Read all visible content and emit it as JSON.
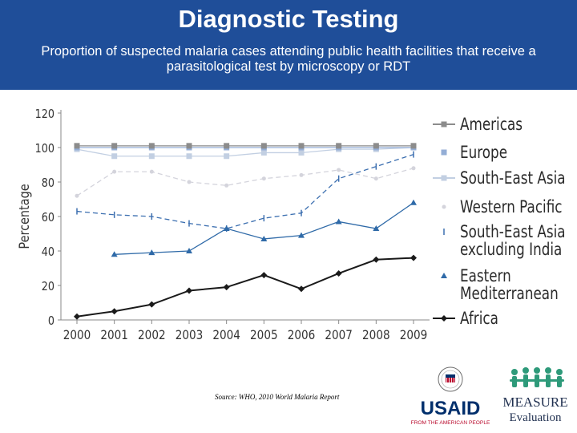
{
  "header": {
    "title": "Diagnostic Testing",
    "subtitle": "Proportion of suspected malaria cases attending public health facilities that receive a parasitological test by microscopy or RDT"
  },
  "chart_data": {
    "type": "line",
    "title": "",
    "xlabel": "",
    "ylabel": "Percentage",
    "categories": [
      "2000",
      "2001",
      "2002",
      "2003",
      "2004",
      "2005",
      "2006",
      "2007",
      "2008",
      "2009"
    ],
    "ylim": [
      0,
      120
    ],
    "yticks": [
      0,
      20,
      40,
      60,
      80,
      100,
      120
    ],
    "legend_position": "right",
    "series": [
      {
        "name": "Americas",
        "style": "solid",
        "marker": "square",
        "color": "#8c8c8c",
        "values": [
          101,
          101,
          101,
          101,
          101,
          101,
          101,
          101,
          101,
          101
        ]
      },
      {
        "name": "Europe",
        "style": "solid",
        "marker": "square",
        "color": "#94aed6",
        "values": [
          100,
          100,
          100,
          100,
          100,
          100,
          100,
          100,
          100,
          100
        ]
      },
      {
        "name": "South-East Asia",
        "style": "solid",
        "marker": "square",
        "color": "#c2cfe2",
        "values": [
          99,
          95,
          95,
          95,
          95,
          97,
          97,
          99,
          99,
          100
        ]
      },
      {
        "name": "Western Pacific",
        "style": "dashed",
        "marker": "circle",
        "color": "#d4d4dc",
        "values": [
          72,
          86,
          86,
          80,
          78,
          82,
          84,
          87,
          82,
          88
        ]
      },
      {
        "name": "South-East Asia excluding India",
        "style": "dashed",
        "marker": "tick",
        "color": "#3c6fb0",
        "values": [
          63,
          61,
          60,
          56,
          53,
          59,
          62,
          82,
          89,
          96
        ]
      },
      {
        "name": "Eastern Mediterranean",
        "style": "solid",
        "marker": "triangle",
        "color": "#2f6aa8",
        "values": [
          null,
          38,
          39,
          40,
          53,
          47,
          49,
          57,
          53,
          68
        ]
      },
      {
        "name": "Africa",
        "style": "solid",
        "marker": "diamond",
        "color": "#1a1a1a",
        "values": [
          2,
          5,
          9,
          17,
          19,
          26,
          18,
          27,
          35,
          36
        ]
      }
    ]
  },
  "source": "Source: WHO, 2010 World Malaria Report",
  "logos": {
    "usaid_name": "USAID",
    "usaid_tagline": "FROM THE AMERICAN PEOPLE",
    "measure_name": "MEASURE",
    "measure_sub": "Evaluation"
  },
  "colors": {
    "header_bg": "#1f4e99",
    "usaid_blue": "#002f6c",
    "usaid_red": "#ba0c2f",
    "measure_green": "#2e9a7a"
  }
}
